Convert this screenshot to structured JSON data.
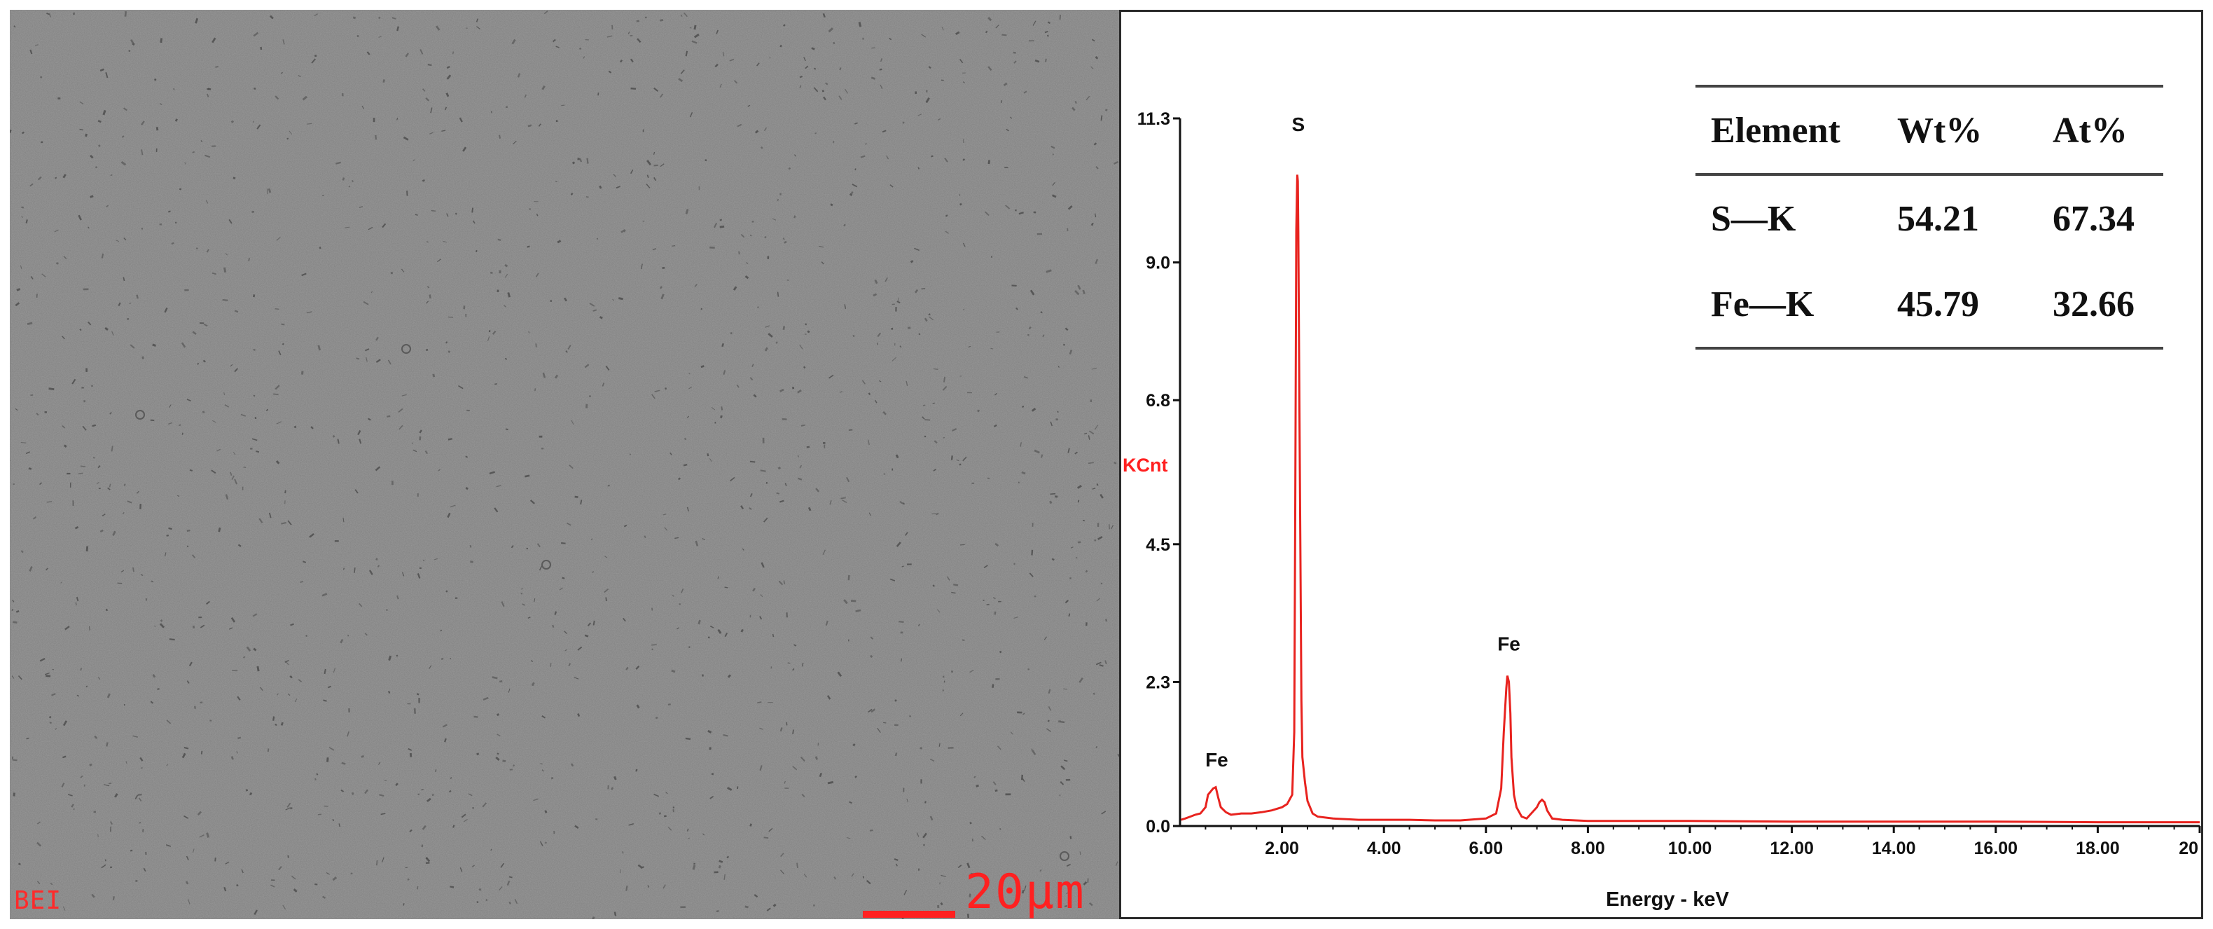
{
  "sem": {
    "mode_label": "BEI",
    "scale_label": "20μm",
    "background_color": "#808080",
    "accent_color": "#ff2020"
  },
  "chart_data": {
    "type": "line",
    "title": "",
    "xlabel": "Energy - keV",
    "ylabel": "KCnt",
    "xlim": [
      0,
      20
    ],
    "ylim": [
      0,
      11.3
    ],
    "xticks": [
      2,
      4,
      6,
      8,
      10,
      12,
      14,
      16,
      18,
      20
    ],
    "xtick_labels": [
      "2.00",
      "4.00",
      "6.00",
      "8.00",
      "10.00",
      "12.00",
      "14.00",
      "16.00",
      "18.00",
      "20"
    ],
    "yticks": [
      0.0,
      2.3,
      4.5,
      6.8,
      9.0,
      11.3
    ],
    "ytick_labels": [
      "0.0",
      "2.3",
      "4.5",
      "6.8",
      "9.0",
      "11.3"
    ],
    "grid": false,
    "line_color": "#e8231f",
    "series": [
      {
        "x": [
          0.02,
          0.1,
          0.2,
          0.3,
          0.4,
          0.5,
          0.55,
          0.6,
          0.65,
          0.7,
          0.75,
          0.8,
          0.9,
          1.0,
          1.2,
          1.4,
          1.6,
          1.8,
          2.0,
          2.1,
          2.2,
          2.24,
          2.26,
          2.28,
          2.3,
          2.31,
          2.32,
          2.34,
          2.36,
          2.38,
          2.4,
          2.45,
          2.5,
          2.6,
          2.7,
          3.0,
          3.5,
          4.0,
          4.5,
          5.0,
          5.5,
          6.0,
          6.2,
          6.3,
          6.35,
          6.4,
          6.42,
          6.45,
          6.48,
          6.5,
          6.55,
          6.6,
          6.7,
          6.8,
          7.0,
          7.05,
          7.1,
          7.15,
          7.2,
          7.3,
          7.5,
          8.0,
          10.0,
          12.0,
          14.0,
          16.0,
          18.0,
          20.0
        ],
        "y": [
          0.1,
          0.12,
          0.15,
          0.18,
          0.2,
          0.3,
          0.5,
          0.55,
          0.6,
          0.62,
          0.45,
          0.3,
          0.22,
          0.18,
          0.2,
          0.2,
          0.22,
          0.25,
          0.3,
          0.35,
          0.5,
          1.5,
          5.0,
          9.5,
          10.4,
          10.3,
          9.5,
          6.8,
          4.5,
          2.0,
          1.1,
          0.7,
          0.4,
          0.2,
          0.15,
          0.12,
          0.1,
          0.1,
          0.1,
          0.09,
          0.09,
          0.12,
          0.2,
          0.6,
          1.5,
          2.2,
          2.4,
          2.3,
          1.8,
          1.1,
          0.5,
          0.3,
          0.15,
          0.12,
          0.3,
          0.38,
          0.42,
          0.38,
          0.25,
          0.12,
          0.1,
          0.08,
          0.08,
          0.07,
          0.07,
          0.07,
          0.06,
          0.06
        ]
      }
    ],
    "annotations": [
      {
        "text": "S",
        "x": 2.32,
        "y": 11.1
      },
      {
        "text": "Fe",
        "x": 6.45,
        "y": 2.8
      },
      {
        "text": "Fe",
        "x": 0.72,
        "y": 0.95
      }
    ],
    "table": {
      "headers": [
        "Element",
        "Wt%",
        "At%"
      ],
      "rows": [
        [
          "S—K",
          "54.21",
          "67.34"
        ],
        [
          "Fe—K",
          "45.79",
          "32.66"
        ]
      ]
    }
  }
}
